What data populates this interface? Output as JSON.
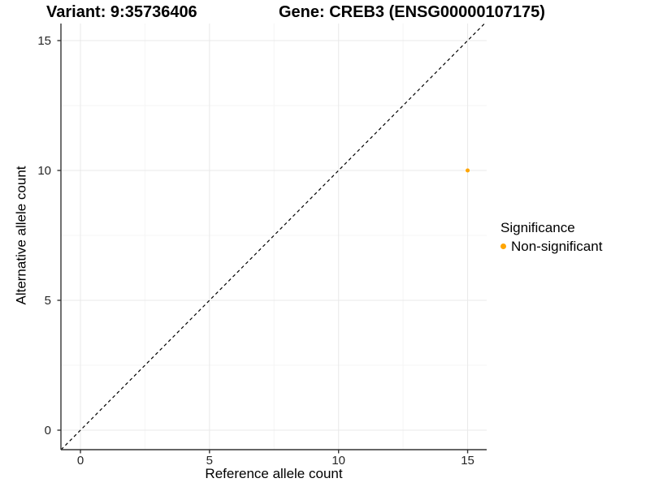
{
  "chart_data": {
    "type": "scatter",
    "titles": [
      "Variant: 9:35736406",
      "Gene: CREB3 (ENSG00000107175)"
    ],
    "xlabel": "Reference allele count",
    "ylabel": "Alternative allele count",
    "xlim": [
      -0.75,
      15.75
    ],
    "ylim": [
      -0.75,
      15.75
    ],
    "xticks": [
      0,
      5,
      10,
      15
    ],
    "yticks": [
      0,
      5,
      10,
      15
    ],
    "minor_ticks": [
      2.5,
      7.5,
      12.5
    ],
    "grid": "major and minor gridlines on white panel",
    "points": [
      {
        "x": 15,
        "y": 10,
        "series": "Non-significant",
        "color": "#FFA500",
        "radius_px": 2.5
      }
    ],
    "reference_line": {
      "kind": "identity y=x",
      "style": "dashed",
      "color": "#000000"
    },
    "legend": {
      "title": "Significance",
      "position": "right",
      "items": [
        {
          "label": "Non-significant",
          "color": "#FFA500"
        }
      ]
    },
    "colors": {
      "background": "#ffffff",
      "grid_major": "#e9e9e9",
      "grid_minor": "#f5f5f5",
      "axis_line": "#333333",
      "title_text": "#000000",
      "tick_text": "#262626"
    }
  }
}
